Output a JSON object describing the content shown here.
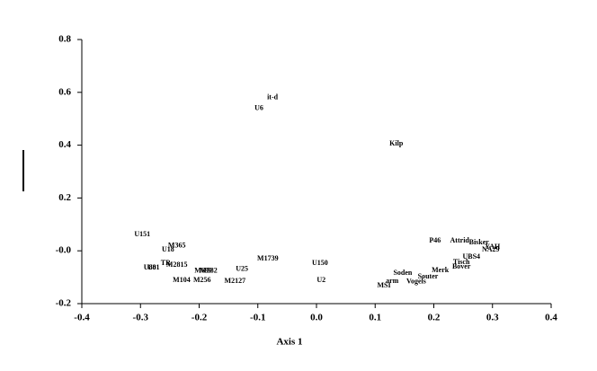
{
  "chart_data": {
    "type": "scatter",
    "xlabel": "Axis 1",
    "xlim": [
      -0.4,
      0.4
    ],
    "ylim": [
      -0.2,
      0.8
    ],
    "xticks": [
      -0.4,
      -0.3,
      -0.2,
      -0.1,
      {
        "value": 0,
        "label": "0.0"
      },
      0.1,
      0.2,
      0.3,
      0.4
    ],
    "yticks": [
      -0.2,
      {
        "value": 0,
        "label": "-0.0"
      },
      0.2,
      0.4,
      0.6,
      0.8
    ],
    "labels": [
      "it-d",
      "U6",
      "Kilp",
      "U151",
      "M365",
      "U18",
      "P46",
      "Attrid",
      "Bisker",
      "YAH",
      "NA29",
      "UBS4",
      "Tisch",
      "Bover",
      "Merk",
      "Soden",
      "Souter",
      "Vogels",
      "arm",
      "MSI",
      "M1739",
      "U150",
      "U2",
      "TR",
      "M2815",
      "U80",
      "U81",
      "M699",
      "M582",
      "U25",
      "M104",
      "M256",
      "M2127"
    ],
    "x": [
      -0.075,
      -0.098,
      0.136,
      -0.297,
      -0.238,
      -0.253,
      0.202,
      0.244,
      0.277,
      0.3,
      0.297,
      0.264,
      0.247,
      0.247,
      0.211,
      0.147,
      0.19,
      0.17,
      0.129,
      0.115,
      -0.083,
      0.006,
      0.008,
      -0.257,
      -0.238,
      -0.284,
      -0.278,
      -0.193,
      -0.184,
      -0.127,
      -0.23,
      -0.195,
      -0.139
    ],
    "values": [
      0.58,
      0.54,
      0.405,
      0.062,
      0.018,
      0.004,
      0.038,
      0.038,
      0.031,
      0.014,
      0.004,
      -0.023,
      -0.044,
      -0.061,
      -0.074,
      -0.085,
      -0.098,
      -0.118,
      -0.115,
      -0.132,
      -0.03,
      -0.047,
      -0.112,
      -0.047,
      -0.054,
      -0.064,
      -0.064,
      -0.077,
      -0.077,
      -0.07,
      -0.112,
      -0.112,
      -0.115
    ]
  }
}
